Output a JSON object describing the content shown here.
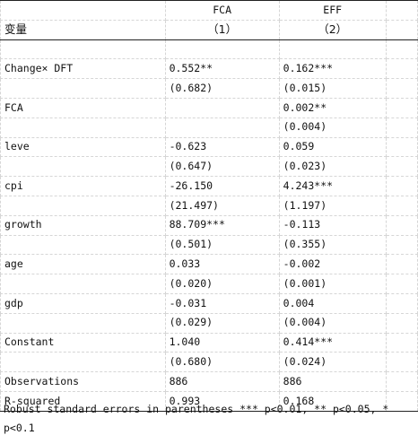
{
  "header": {
    "col1_name": "FCA",
    "col2_name": "EFF",
    "row_label": "变量",
    "col1_num": "（1）",
    "col2_num": "（2）"
  },
  "rows": [
    {
      "label": "Change× DFT",
      "c1": "0.552**",
      "c2": "0.162***"
    },
    {
      "label": "",
      "c1": "(0.682)",
      "c2": "(0.015)"
    },
    {
      "label": "FCA",
      "c1": "",
      "c2": "0.002**"
    },
    {
      "label": "",
      "c1": "",
      "c2": "(0.004)"
    },
    {
      "label": "leve",
      "c1": "-0.623",
      "c2": "0.059"
    },
    {
      "label": "",
      "c1": "(0.647)",
      "c2": "(0.023)"
    },
    {
      "label": "cpi",
      "c1": "-26.150",
      "c2": "4.243***"
    },
    {
      "label": "",
      "c1": "(21.497)",
      "c2": "(1.197)"
    },
    {
      "label": "growth",
      "c1": "88.709***",
      "c2": "-0.113"
    },
    {
      "label": "",
      "c1": "(0.501)",
      "c2": "(0.355)"
    },
    {
      "label": "age",
      "c1": "0.033",
      "c2": "-0.002"
    },
    {
      "label": "",
      "c1": "(0.020)",
      "c2": "(0.001)"
    },
    {
      "label": "gdp",
      "c1": "-0.031",
      "c2": "0.004"
    },
    {
      "label": "",
      "c1": "(0.029)",
      "c2": "(0.004)"
    },
    {
      "label": "Constant",
      "c1": "1.040",
      "c2": "0.414***"
    },
    {
      "label": "",
      "c1": "(0.680)",
      "c2": "(0.024)"
    },
    {
      "label": "Observations",
      "c1": "886",
      "c2": "886"
    },
    {
      "label": "R-squared",
      "c1": "0.993",
      "c2": "0.168"
    }
  ],
  "note": {
    "line1": "Robust standard errors in parentheses  *** p<0.01, ** p<0.05, *",
    "line2": "p<0.1"
  }
}
